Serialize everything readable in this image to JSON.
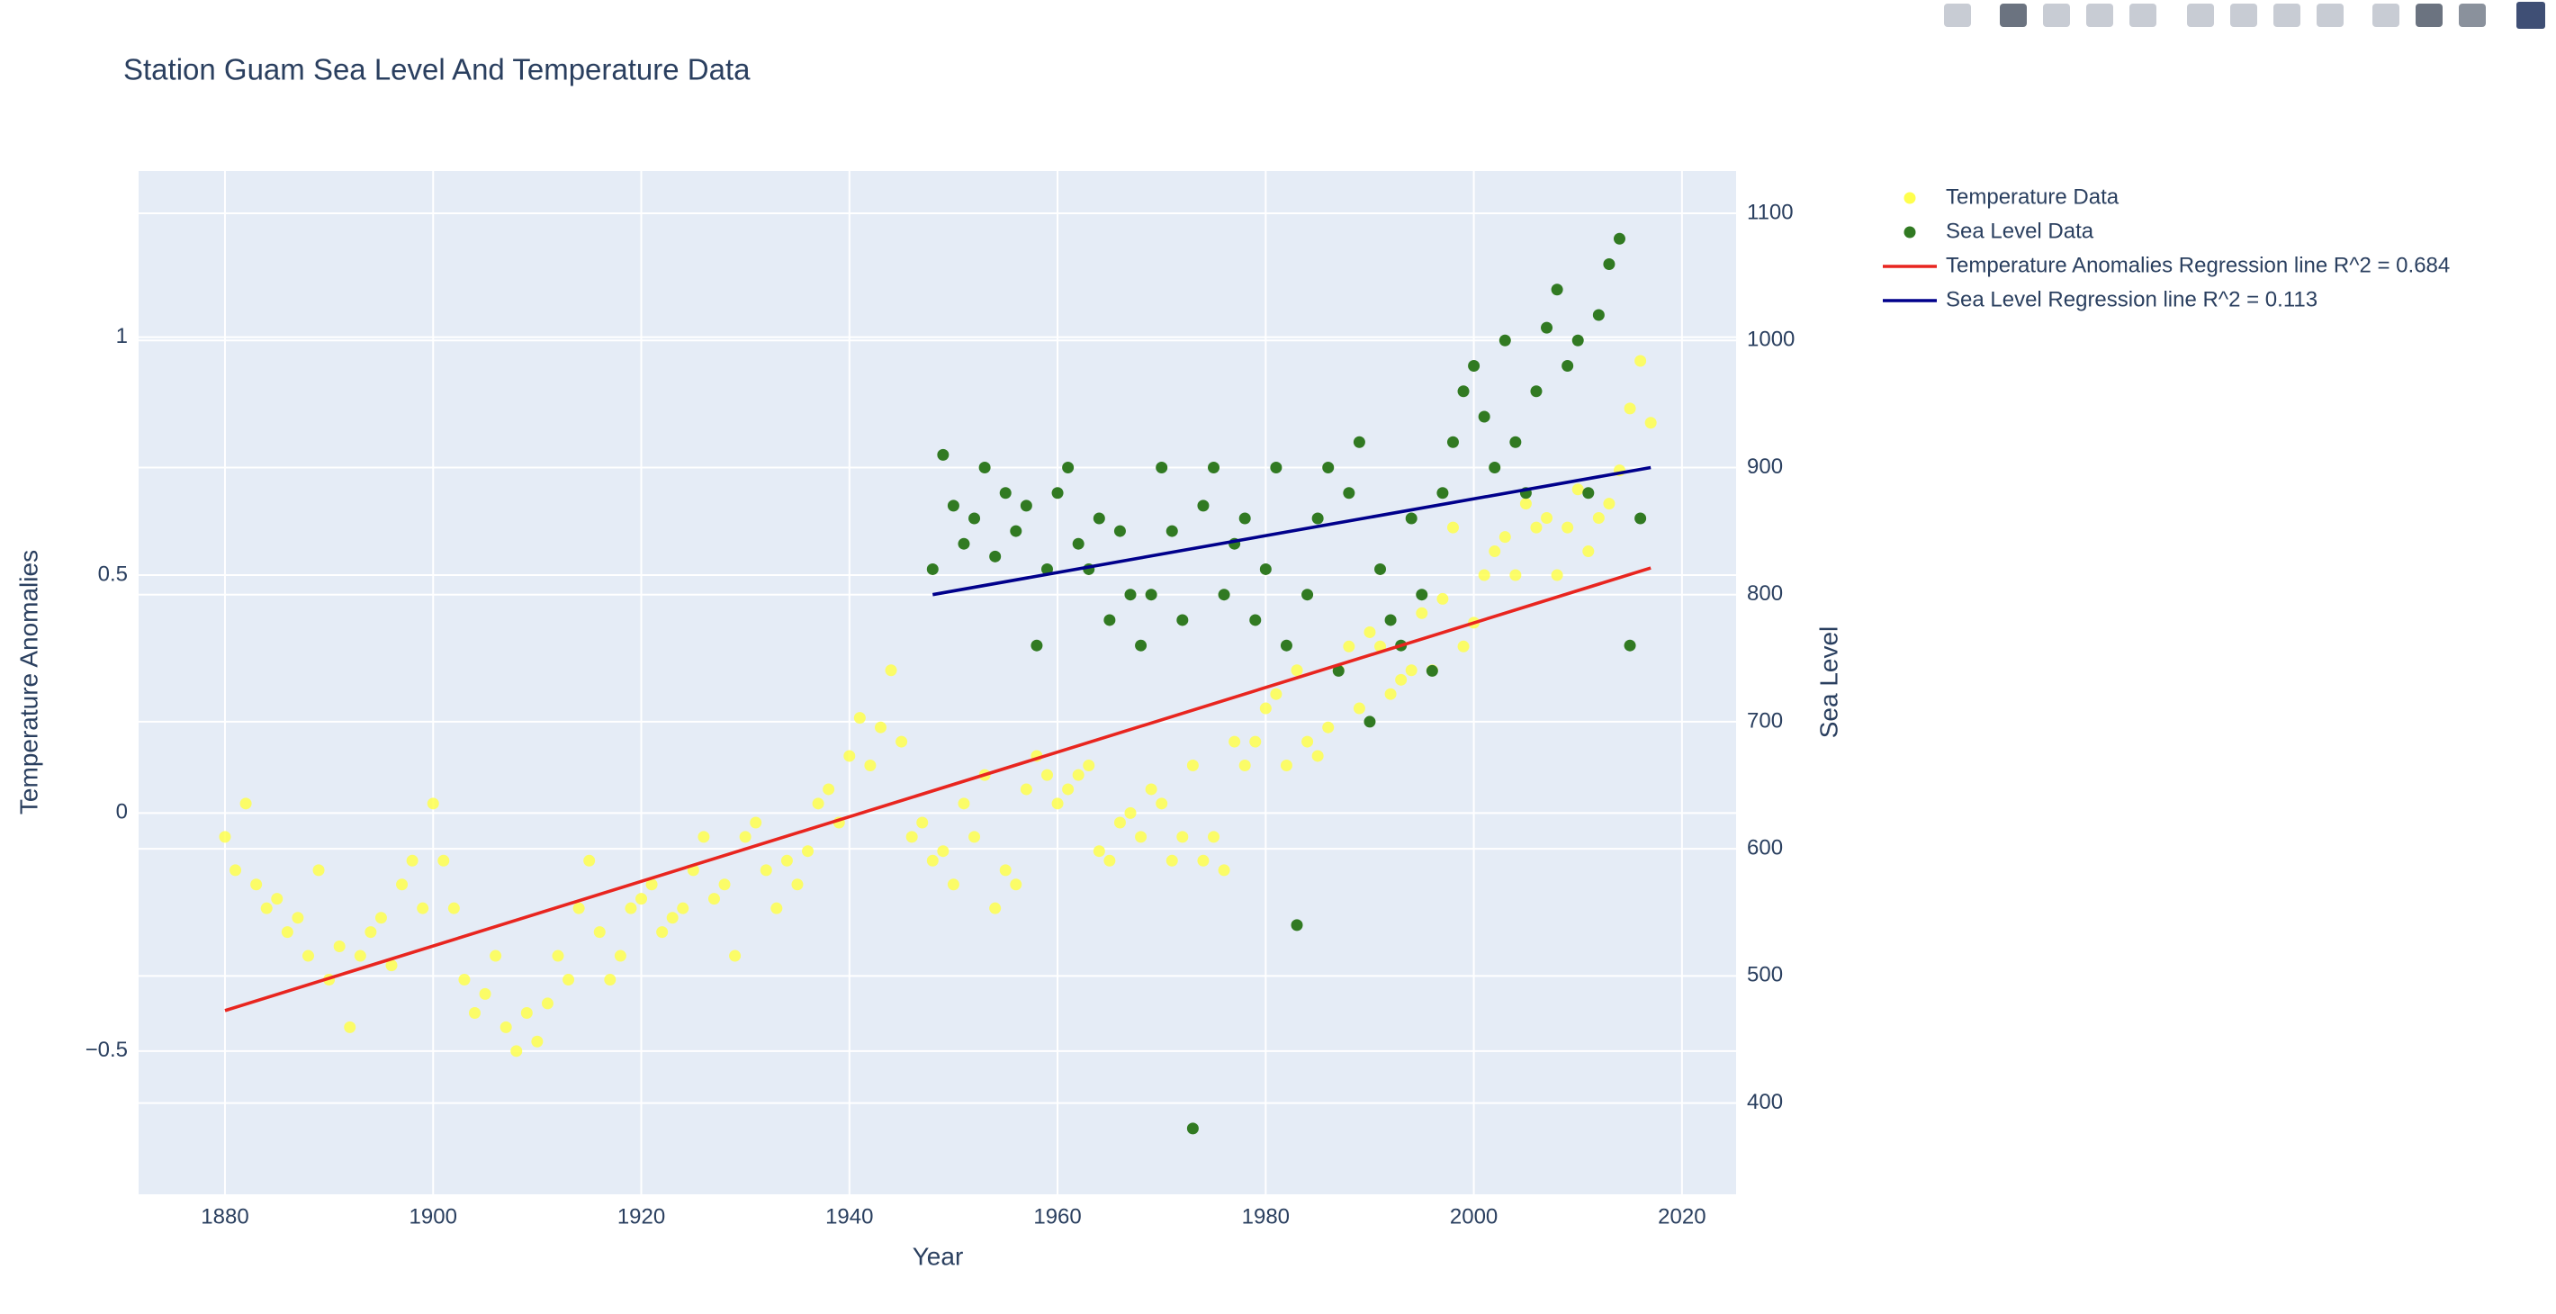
{
  "chart_data": {
    "type": "scatter",
    "title": "Station Guam Sea Level And Temperature Data",
    "xlabel": "Year",
    "ylabel": "Temperature Anomalies",
    "y2label": "Sea Level",
    "xlim": [
      1871.7,
      2025.2
    ],
    "xticks": [
      1880,
      1900,
      1920,
      1940,
      1960,
      1980,
      2000,
      2020
    ],
    "ylim": [
      -0.801,
      1.349
    ],
    "yticks": [
      {
        "value": -0.5,
        "label": "−0.5"
      },
      0,
      0.5,
      1
    ],
    "y2lim": [
      328.2,
      1133.3
    ],
    "y2ticks": [
      400,
      500,
      600,
      700,
      800,
      900,
      1000,
      1100
    ],
    "grid": true,
    "legend": "right",
    "series": [
      {
        "name": "Temperature Data",
        "color": "#ffff4d",
        "mode": "markers",
        "axis": "y",
        "x": [
          1880,
          1881,
          1882,
          1883,
          1884,
          1885,
          1886,
          1887,
          1888,
          1889,
          1890,
          1891,
          1892,
          1893,
          1894,
          1895,
          1896,
          1897,
          1898,
          1899,
          1900,
          1901,
          1902,
          1903,
          1904,
          1905,
          1906,
          1907,
          1908,
          1909,
          1910,
          1911,
          1912,
          1913,
          1914,
          1915,
          1916,
          1917,
          1918,
          1919,
          1920,
          1921,
          1922,
          1923,
          1924,
          1925,
          1926,
          1927,
          1928,
          1929,
          1930,
          1931,
          1932,
          1933,
          1934,
          1935,
          1936,
          1937,
          1938,
          1939,
          1940,
          1941,
          1942,
          1943,
          1944,
          1945,
          1946,
          1947,
          1948,
          1949,
          1950,
          1951,
          1952,
          1953,
          1954,
          1955,
          1956,
          1957,
          1958,
          1959,
          1960,
          1961,
          1962,
          1963,
          1964,
          1965,
          1966,
          1967,
          1968,
          1969,
          1970,
          1971,
          1972,
          1973,
          1974,
          1975,
          1976,
          1977,
          1978,
          1979,
          1980,
          1981,
          1982,
          1983,
          1984,
          1985,
          1986,
          1987,
          1988,
          1989,
          1990,
          1991,
          1992,
          1993,
          1994,
          1995,
          1996,
          1997,
          1998,
          1999,
          2000,
          2001,
          2002,
          2003,
          2004,
          2005,
          2006,
          2007,
          2008,
          2009,
          2010,
          2011,
          2012,
          2013,
          2014,
          2015,
          2016,
          2017
        ],
        "values": [
          -0.05,
          -0.12,
          0.02,
          -0.15,
          -0.2,
          -0.18,
          -0.25,
          -0.22,
          -0.3,
          -0.12,
          -0.35,
          -0.28,
          -0.45,
          -0.3,
          -0.25,
          -0.22,
          -0.32,
          -0.15,
          -0.1,
          -0.2,
          0.02,
          -0.1,
          -0.2,
          -0.35,
          -0.42,
          -0.38,
          -0.3,
          -0.45,
          -0.5,
          -0.42,
          -0.48,
          -0.4,
          -0.3,
          -0.35,
          -0.2,
          -0.1,
          -0.25,
          -0.35,
          -0.3,
          -0.2,
          -0.18,
          -0.15,
          -0.25,
          -0.22,
          -0.2,
          -0.12,
          -0.05,
          -0.18,
          -0.15,
          -0.3,
          -0.05,
          -0.02,
          -0.12,
          -0.2,
          -0.1,
          -0.15,
          -0.08,
          0.02,
          0.05,
          -0.02,
          0.12,
          0.2,
          0.1,
          0.18,
          0.3,
          0.15,
          -0.05,
          -0.02,
          -0.1,
          -0.08,
          -0.15,
          0.02,
          -0.05,
          0.08,
          -0.2,
          -0.12,
          -0.15,
          0.05,
          0.12,
          0.08,
          0.02,
          0.05,
          0.08,
          0.1,
          -0.08,
          -0.1,
          -0.02,
          0.0,
          -0.05,
          0.05,
          0.02,
          -0.1,
          -0.05,
          0.1,
          -0.1,
          -0.05,
          -0.12,
          0.15,
          0.1,
          0.15,
          0.22,
          0.25,
          0.1,
          0.3,
          0.15,
          0.12,
          0.18,
          0.3,
          0.35,
          0.22,
          0.38,
          0.35,
          0.25,
          0.28,
          0.3,
          0.42,
          0.3,
          0.45,
          0.6,
          0.35,
          0.4,
          0.5,
          0.55,
          0.58,
          0.5,
          0.65,
          0.6,
          0.62,
          0.5,
          0.6,
          0.68,
          0.55,
          0.62,
          0.65,
          0.72,
          0.85,
          0.95,
          0.82
        ]
      },
      {
        "name": "Sea Level Data",
        "color": "#317a22",
        "mode": "markers",
        "axis": "y2",
        "x": [
          1948,
          1949,
          1950,
          1951,
          1952,
          1953,
          1954,
          1955,
          1956,
          1957,
          1958,
          1959,
          1960,
          1961,
          1962,
          1963,
          1964,
          1965,
          1966,
          1967,
          1968,
          1969,
          1970,
          1971,
          1972,
          1973,
          1974,
          1975,
          1976,
          1977,
          1978,
          1979,
          1980,
          1981,
          1982,
          1983,
          1984,
          1985,
          1986,
          1987,
          1988,
          1989,
          1990,
          1991,
          1992,
          1993,
          1994,
          1995,
          1996,
          1997,
          1998,
          1999,
          2000,
          2001,
          2002,
          2003,
          2004,
          2005,
          2006,
          2007,
          2008,
          2009,
          2010,
          2011,
          2012,
          2013,
          2014,
          2015,
          2016
        ],
        "values": [
          820,
          910,
          870,
          840,
          860,
          900,
          830,
          880,
          850,
          870,
          760,
          820,
          880,
          900,
          840,
          820,
          860,
          780,
          850,
          800,
          760,
          800,
          900,
          850,
          780,
          380,
          870,
          900,
          800,
          840,
          860,
          780,
          820,
          900,
          760,
          540,
          800,
          860,
          900,
          740,
          880,
          920,
          700,
          820,
          780,
          760,
          860,
          800,
          740,
          880,
          920,
          960,
          980,
          940,
          900,
          1000,
          920,
          880,
          960,
          1010,
          1040,
          980,
          1000,
          880,
          1020,
          1060,
          1080,
          760,
          860
        ]
      },
      {
        "name": "Temperature Anomalies Regression line R^2 = 0.684",
        "color": "#e8251f",
        "mode": "lines",
        "axis": "y",
        "x": [
          1880,
          2017
        ],
        "values": [
          -0.415,
          0.515
        ]
      },
      {
        "name": "Sea Level Regression line R^2 = 0.113",
        "color": "#00008b",
        "mode": "lines",
        "axis": "y2",
        "x": [
          1948,
          2017
        ],
        "values": [
          800,
          900
        ]
      }
    ]
  }
}
